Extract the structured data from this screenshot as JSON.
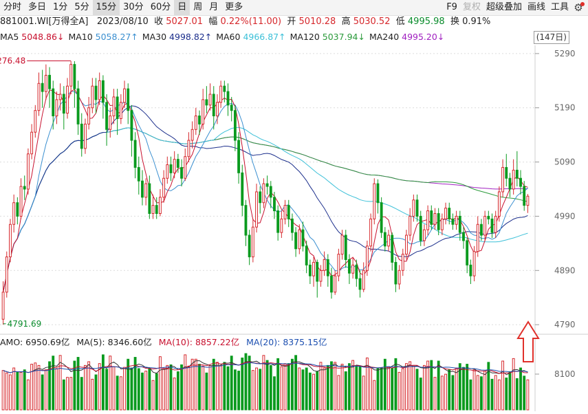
{
  "toolbar": {
    "periods": [
      {
        "label": "分时",
        "active": false
      },
      {
        "label": "多日",
        "active": false
      },
      {
        "label": "1分",
        "active": false
      },
      {
        "label": "5分",
        "active": false
      },
      {
        "label": "15分",
        "active": true
      },
      {
        "label": "30分",
        "active": false
      },
      {
        "label": "60分",
        "active": false
      },
      {
        "label": "日",
        "active": true
      },
      {
        "label": "周",
        "active": false
      },
      {
        "label": "月",
        "active": false
      },
      {
        "label": "更多",
        "active": false
      }
    ],
    "tools": [
      {
        "label": "F9",
        "disabled": false
      },
      {
        "label": "复权",
        "disabled": true
      },
      {
        "label": "超级叠加",
        "disabled": false
      },
      {
        "label": "画线",
        "disabled": false
      },
      {
        "label": "工具",
        "disabled": false
      }
    ],
    "settings_icon": "gear-icon"
  },
  "info": {
    "code": "881001.WI[万得全A]",
    "date": "2023/08/10",
    "close_label": "收",
    "close": "5027.01",
    "change_label": "幅",
    "change": "0.22%(11.00)",
    "open_label": "开",
    "open": "5010.28",
    "high_label": "高",
    "high": "5030.52",
    "low_label": "低",
    "low": "4995.98",
    "turnover_label": "换",
    "turnover": "0.91%"
  },
  "ma_legend": [
    {
      "label": "MA5",
      "value": "5048.86",
      "arrow": "↓",
      "color": "#c8102e"
    },
    {
      "label": "MA10",
      "value": "5058.27",
      "arrow": "↑",
      "color": "#3a8fd0"
    },
    {
      "label": "MA30",
      "value": "4998.82",
      "arrow": "↑",
      "color": "#1c2f8c"
    },
    {
      "label": "MA60",
      "value": "4966.87",
      "arrow": "↑",
      "color": "#3cc0d8"
    },
    {
      "label": "MA120",
      "value": "5037.94",
      "arrow": "↓",
      "color": "#2a9a3a"
    },
    {
      "label": "MA240",
      "value": "4995.20",
      "arrow": "↓",
      "color": "#a020c0"
    }
  ],
  "range_button": "(147日)",
  "volume_legend": [
    {
      "label": "AMO: ",
      "value": "6950.69亿",
      "color": "#222222"
    },
    {
      "label": "MA(5): ",
      "value": "8346.60亿",
      "color": "#222222"
    },
    {
      "label": "MA(10): ",
      "value": "8857.22亿",
      "color": "#c8102e"
    },
    {
      "label": "MA(20): ",
      "value": "8375.15亿",
      "color": "#1c4fb0"
    }
  ],
  "colors": {
    "up": "#d6282c",
    "down": "#0a9a1e",
    "grid": "#dcdcdc"
  },
  "chart_data": {
    "type": "candlestick",
    "price_axis": {
      "ticks": [
        5290,
        5190,
        5090,
        4990,
        4890,
        4790
      ],
      "ylim": [
        4780,
        5300
      ]
    },
    "volume_axis": {
      "ticks": [
        8100
      ],
      "unit": "亿"
    },
    "annotations": [
      {
        "label": "5276.48",
        "value": 5276.48,
        "kind": "max"
      },
      {
        "label": "4791.69",
        "value": 4791.69,
        "kind": "min"
      }
    ],
    "candles": [
      [
        4800,
        4850,
        4790,
        4870
      ],
      [
        4850,
        4915,
        4840,
        4925
      ],
      [
        4915,
        4975,
        4905,
        4985
      ],
      [
        4975,
        5015,
        4960,
        5030
      ],
      [
        5015,
        4990,
        4975,
        5025
      ],
      [
        4990,
        5045,
        4985,
        5060
      ],
      [
        5045,
        5040,
        5020,
        5065
      ],
      [
        5040,
        5105,
        5030,
        5115
      ],
      [
        5105,
        5145,
        5095,
        5160
      ],
      [
        5145,
        5185,
        5135,
        5195
      ],
      [
        5185,
        5235,
        5175,
        5255
      ],
      [
        5235,
        5220,
        5190,
        5260
      ],
      [
        5220,
        5250,
        5205,
        5270
      ],
      [
        5250,
        5225,
        5190,
        5265
      ],
      [
        5225,
        5175,
        5150,
        5240
      ],
      [
        5175,
        5205,
        5160,
        5220
      ],
      [
        5205,
        5215,
        5185,
        5235
      ],
      [
        5215,
        5180,
        5150,
        5230
      ],
      [
        5180,
        5230,
        5170,
        5245
      ],
      [
        5230,
        5270,
        5215,
        5276
      ],
      [
        5270,
        5225,
        5190,
        5276
      ],
      [
        5225,
        5160,
        5140,
        5240
      ],
      [
        5160,
        5115,
        5100,
        5180
      ],
      [
        5115,
        5160,
        5105,
        5170
      ],
      [
        5160,
        5190,
        5150,
        5210
      ],
      [
        5190,
        5230,
        5180,
        5245
      ],
      [
        5230,
        5205,
        5180,
        5245
      ],
      [
        5205,
        5240,
        5195,
        5255
      ],
      [
        5240,
        5200,
        5170,
        5250
      ],
      [
        5200,
        5150,
        5120,
        5215
      ],
      [
        5150,
        5175,
        5135,
        5190
      ],
      [
        5175,
        5210,
        5160,
        5225
      ],
      [
        5210,
        5170,
        5140,
        5225
      ],
      [
        5170,
        5200,
        5160,
        5215
      ],
      [
        5200,
        5225,
        5190,
        5240
      ],
      [
        5225,
        5185,
        5160,
        5235
      ],
      [
        5185,
        5130,
        5100,
        5195
      ],
      [
        5130,
        5080,
        5060,
        5145
      ],
      [
        5080,
        5055,
        5030,
        5100
      ],
      [
        5055,
        5025,
        5010,
        5075
      ],
      [
        5025,
        5050,
        5010,
        5060
      ],
      [
        5050,
        4995,
        4985,
        5065
      ],
      [
        4995,
        5010,
        4985,
        5030
      ],
      [
        5010,
        4995,
        4985,
        5025
      ],
      [
        4995,
        5025,
        4990,
        5040
      ],
      [
        5025,
        5060,
        5015,
        5075
      ],
      [
        5060,
        5085,
        5050,
        5100
      ],
      [
        5085,
        5070,
        5055,
        5100
      ],
      [
        5070,
        5095,
        5060,
        5110
      ],
      [
        5095,
        5080,
        5070,
        5105
      ],
      [
        5080,
        5060,
        5045,
        5095
      ],
      [
        5060,
        5100,
        5055,
        5115
      ],
      [
        5100,
        5130,
        5090,
        5145
      ],
      [
        5130,
        5150,
        5115,
        5165
      ],
      [
        5150,
        5175,
        5140,
        5190
      ],
      [
        5175,
        5160,
        5140,
        5185
      ],
      [
        5160,
        5205,
        5150,
        5225
      ],
      [
        5205,
        5195,
        5180,
        5230
      ],
      [
        5195,
        5215,
        5185,
        5235
      ],
      [
        5215,
        5175,
        5150,
        5230
      ],
      [
        5175,
        5200,
        5160,
        5215
      ],
      [
        5200,
        5230,
        5190,
        5240
      ],
      [
        5230,
        5220,
        5200,
        5240
      ],
      [
        5220,
        5195,
        5175,
        5235
      ],
      [
        5195,
        5185,
        5165,
        5210
      ],
      [
        5185,
        5130,
        5110,
        5195
      ],
      [
        5130,
        5070,
        5050,
        5145
      ],
      [
        5070,
        5010,
        4990,
        5085
      ],
      [
        5010,
        4955,
        4935,
        5020
      ],
      [
        4955,
        4915,
        4900,
        4965
      ],
      [
        4915,
        4970,
        4905,
        4985
      ],
      [
        4970,
        5035,
        4960,
        5050
      ],
      [
        5035,
        5015,
        4995,
        5045
      ],
      [
        5015,
        5050,
        5005,
        5060
      ],
      [
        5050,
        5045,
        5030,
        5065
      ],
      [
        5045,
        5025,
        5005,
        5055
      ],
      [
        5025,
        5000,
        4985,
        5035
      ],
      [
        5000,
        4960,
        4945,
        5010
      ],
      [
        4960,
        4985,
        4950,
        5000
      ],
      [
        4985,
        5010,
        4975,
        5020
      ],
      [
        5010,
        4985,
        4970,
        5020
      ],
      [
        4985,
        4960,
        4945,
        4995
      ],
      [
        4960,
        4930,
        4915,
        4970
      ],
      [
        4930,
        4965,
        4920,
        4975
      ],
      [
        4965,
        4935,
        4925,
        4980
      ],
      [
        4935,
        4900,
        4885,
        4945
      ],
      [
        4900,
        4880,
        4865,
        4910
      ],
      [
        4880,
        4905,
        4860,
        4915
      ],
      [
        4905,
        4870,
        4840,
        4910
      ],
      [
        4870,
        4890,
        4860,
        4900
      ],
      [
        4890,
        4910,
        4880,
        4925
      ],
      [
        4910,
        4880,
        4860,
        4920
      ],
      [
        4880,
        4850,
        4838,
        4895
      ],
      [
        4850,
        4880,
        4845,
        4890
      ],
      [
        4880,
        4920,
        4870,
        4930
      ],
      [
        4920,
        4955,
        4910,
        4965
      ],
      [
        4955,
        4910,
        4895,
        4965
      ],
      [
        4910,
        4885,
        4865,
        4920
      ],
      [
        4885,
        4900,
        4875,
        4915
      ],
      [
        4900,
        4875,
        4860,
        4910
      ],
      [
        4875,
        4855,
        4840,
        4890
      ],
      [
        4855,
        4890,
        4850,
        4905
      ],
      [
        4890,
        4935,
        4880,
        4945
      ],
      [
        4935,
        4985,
        4925,
        4995
      ],
      [
        4985,
        5050,
        4975,
        5060
      ],
      [
        5050,
        5015,
        4995,
        5058
      ],
      [
        5015,
        4960,
        4950,
        5025
      ],
      [
        4960,
        4935,
        4925,
        4970
      ],
      [
        4935,
        4955,
        4925,
        4965
      ],
      [
        4955,
        4905,
        4890,
        4960
      ],
      [
        4905,
        4865,
        4850,
        4915
      ],
      [
        4865,
        4890,
        4855,
        4900
      ],
      [
        4890,
        4920,
        4880,
        4930
      ],
      [
        4920,
        4955,
        4910,
        4965
      ],
      [
        4955,
        4990,
        4945,
        5005
      ],
      [
        4990,
        5020,
        4980,
        5030
      ],
      [
        5020,
        4990,
        4980,
        5030
      ],
      [
        4990,
        4945,
        4935,
        5000
      ],
      [
        4945,
        4965,
        4935,
        4975
      ],
      [
        4965,
        5000,
        4955,
        5010
      ],
      [
        5000,
        4975,
        4965,
        5010
      ],
      [
        4975,
        4995,
        4965,
        5005
      ],
      [
        4995,
        4965,
        4955,
        5005
      ],
      [
        4965,
        4985,
        4955,
        4995
      ],
      [
        4985,
        5005,
        4975,
        5015
      ],
      [
        5005,
        4985,
        4975,
        5015
      ],
      [
        4985,
        4975,
        4965,
        4995
      ],
      [
        4975,
        4990,
        4965,
        5000
      ],
      [
        4990,
        4960,
        4945,
        5000
      ],
      [
        4960,
        4945,
        4930,
        4970
      ],
      [
        4945,
        4900,
        4885,
        4950
      ],
      [
        4900,
        4880,
        4865,
        4910
      ],
      [
        4880,
        4925,
        4870,
        4935
      ],
      [
        4925,
        4975,
        4915,
        4990
      ],
      [
        4975,
        4955,
        4945,
        4985
      ],
      [
        4955,
        4990,
        4945,
        5000
      ],
      [
        4990,
        4985,
        4975,
        5000
      ],
      [
        4985,
        4960,
        4950,
        4995
      ],
      [
        4960,
        4990,
        4950,
        5000
      ],
      [
        4990,
        5035,
        4980,
        5045
      ],
      [
        5035,
        5080,
        5025,
        5095
      ],
      [
        5080,
        5060,
        5045,
        5105
      ],
      [
        5060,
        5040,
        5025,
        5070
      ],
      [
        5040,
        5075,
        5030,
        5095
      ],
      [
        5075,
        5060,
        5045,
        5110
      ],
      [
        5060,
        5045,
        5030,
        5075
      ],
      [
        5045,
        5010,
        5000,
        5055
      ],
      [
        5010,
        5027,
        4996,
        5031
      ]
    ],
    "volume": [
      63,
      59,
      56,
      67,
      60,
      60,
      64,
      48,
      73,
      75,
      71,
      56,
      64,
      77,
      86,
      66,
      87,
      48,
      52,
      52,
      78,
      84,
      52,
      71,
      77,
      49,
      56,
      74,
      88,
      65,
      86,
      69,
      54,
      53,
      68,
      81,
      67,
      84,
      66,
      59,
      62,
      67,
      47,
      58,
      85,
      66,
      71,
      72,
      51,
      61,
      72,
      88,
      70,
      81,
      81,
      73,
      70,
      59,
      71,
      81,
      76,
      71,
      76,
      69,
      86,
      64,
      62,
      83,
      90,
      86,
      63,
      67,
      65,
      87,
      79,
      71,
      53,
      82,
      69,
      74,
      74,
      81,
      87,
      67,
      64,
      67,
      59,
      57,
      61,
      76,
      67,
      71,
      77,
      76,
      55,
      73,
      61,
      74,
      79,
      71,
      69,
      54,
      83,
      67,
      47,
      66,
      67,
      81,
      69,
      67,
      82,
      60,
      66,
      74,
      77,
      70,
      65,
      51,
      71,
      78,
      79,
      52,
      78,
      54,
      57,
      64,
      55,
      67,
      74,
      68,
      73,
      48,
      64,
      55,
      53,
      62,
      76,
      49,
      55,
      48,
      78,
      51,
      61,
      82,
      50,
      67,
      54,
      48,
      63
    ]
  }
}
